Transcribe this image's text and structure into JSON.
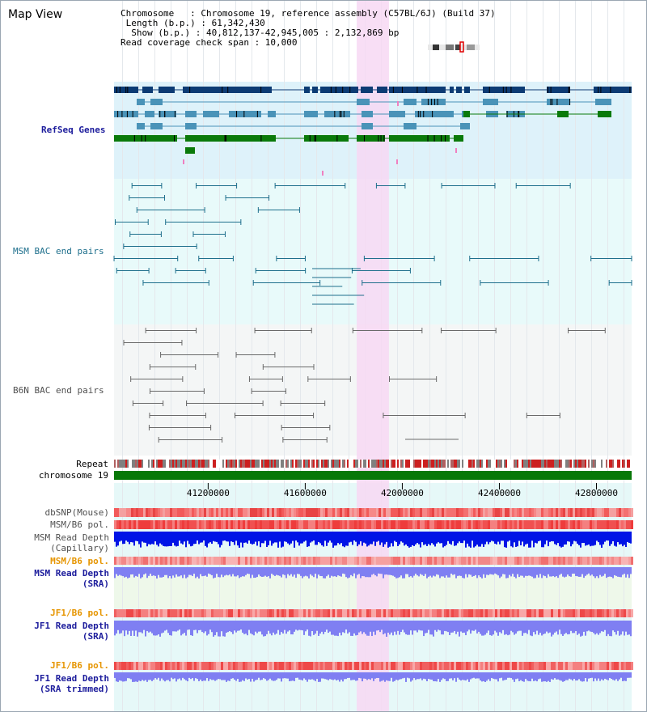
{
  "header": {
    "title": "Map View",
    "info_lines": [
      "Chromosome   : Chromosome 19, reference assembly (C57BL/6J) (Build 37)",
      " Length (b.p.) : 61,342,430",
      "  Show (b.p.) : 40,812,137-42,945,005 : 2,132,869 bp",
      "Read coverage check span : 10,000"
    ]
  },
  "tracks": {
    "refseq": "RefSeq Genes",
    "msm_bac": "MSM BAC end pairs",
    "b6n_bac": "B6N BAC end pairs",
    "repeat": "Repeat",
    "chromosome": "chromosome 19",
    "dbsnp": "dbSNP(Mouse)",
    "msm_b6_pol_1": "MSM/B6 pol.",
    "msm_depth_cap_1": "MSM Read Depth",
    "msm_depth_cap_2": "(Capillary)",
    "msm_b6_pol_2": "MSM/B6 pol.",
    "msm_depth_sra_1": "MSM Read Depth",
    "msm_depth_sra_2": "(SRA)",
    "jf1_b6_pol_1": "JF1/B6 pol.",
    "jf1_depth_sra_1": "JF1 Read Depth",
    "jf1_depth_sra_2": "(SRA)",
    "jf1_b6_pol_2": "JF1/B6 pol.",
    "jf1_depth_trim_1": "JF1 Read Depth",
    "jf1_depth_trim_2": "(SRA trimmed)"
  },
  "axis": {
    "ticks": [
      "41200000",
      "41600000",
      "42000000",
      "42400000",
      "42800000"
    ],
    "tick_values": [
      41200000,
      41600000,
      42000000,
      42400000,
      42800000
    ],
    "view_start": 40812137,
    "view_end": 42945005,
    "highlight_start": 41812137,
    "highlight_end": 41945005
  },
  "colors": {
    "refseq_bg": "#def2fa",
    "msm_bg": "#e8fafa",
    "b6n_bg": "#f4f6f6",
    "highlight": "#f7d8f3",
    "dark_gene": "#0c3b74",
    "mid_gene": "#4a93b8",
    "green_gene": "#0a7a0a",
    "chromosome_bar": "#087808",
    "snp_red": "#ec4c4c",
    "depth_blue": "#0014e6",
    "depth_light": "#7f7ff2",
    "orange": "#e69500"
  }
}
